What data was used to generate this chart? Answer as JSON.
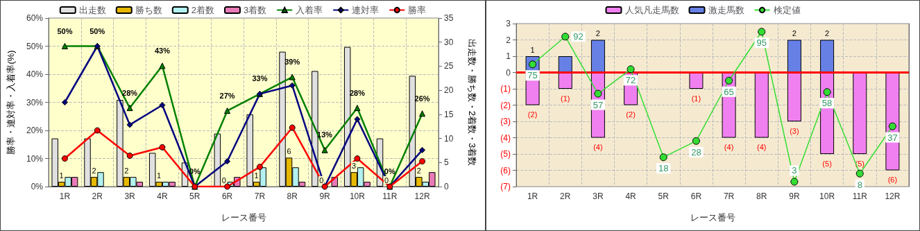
{
  "chart_data": [
    {
      "type": "bar",
      "xlabel": "レース番号",
      "ylabel": "勝率・連対率・入着率(%)",
      "y2label": "出走数・勝ち数・2着数・3着数",
      "categories": [
        "1R",
        "2R",
        "3R",
        "4R",
        "5R",
        "6R",
        "7R",
        "8R",
        "9R",
        "10R",
        "11R",
        "12R"
      ],
      "series": [
        {
          "name": "出走数",
          "axis": "y2",
          "color": "#e0e0e0",
          "values": [
            10,
            10,
            18,
            7,
            5,
            11,
            15,
            28,
            24,
            29,
            10,
            23
          ]
        },
        {
          "name": "勝ち数",
          "axis": "y2",
          "color": "#e6b800",
          "values": [
            1,
            2,
            2,
            1,
            0,
            0,
            1,
            6,
            0,
            3,
            0,
            2
          ],
          "value_labels": [
            "1",
            "2",
            "2",
            "1",
            null,
            "0",
            "1",
            "6",
            "0",
            "3",
            "0",
            "2"
          ]
        },
        {
          "name": "2着数",
          "axis": "y2",
          "color": "#b3f0f0",
          "values": [
            2,
            3,
            2,
            1,
            0,
            1,
            4,
            4,
            0,
            4,
            0,
            1
          ]
        },
        {
          "name": "3着数",
          "axis": "y2",
          "color": "#e87ab8",
          "values": [
            2,
            0,
            1,
            1,
            0,
            2,
            0,
            1,
            2,
            1,
            0,
            3
          ]
        },
        {
          "name": "入着率",
          "type": "line",
          "marker": "triangle",
          "color": "#008000",
          "values": [
            50,
            50,
            28,
            43,
            0,
            27,
            33,
            39,
            13,
            28,
            0,
            26
          ],
          "value_labels": [
            "50%",
            "50%",
            "28%",
            "43%",
            "0%",
            "27%",
            "33%",
            "39%",
            "13%",
            "28%",
            "0%",
            "26%"
          ]
        },
        {
          "name": "連対率",
          "type": "line",
          "marker": "diamond",
          "color": "#000080",
          "values": [
            30,
            50,
            22,
            29,
            0,
            9,
            33,
            36,
            0,
            24,
            0,
            13
          ]
        },
        {
          "name": "勝率",
          "type": "line",
          "marker": "circle",
          "color": "#ff0000",
          "values": [
            10,
            20,
            11,
            14,
            0,
            0,
            7,
            21,
            0,
            10,
            0,
            9
          ]
        }
      ],
      "ylim": [
        0,
        60
      ],
      "yticks": [
        {
          "value": 0,
          "label": "0%"
        },
        {
          "value": 10,
          "label": "10%"
        },
        {
          "value": 20,
          "label": "20%"
        },
        {
          "value": 30,
          "label": "30%"
        },
        {
          "value": 40,
          "label": "40%"
        },
        {
          "value": 50,
          "label": "50%"
        },
        {
          "value": 60,
          "label": "60%"
        }
      ],
      "y2lim": [
        0,
        35
      ],
      "y2ticks": [
        0,
        5,
        10,
        15,
        20,
        25,
        30,
        35
      ],
      "grid": true,
      "legend": "top"
    },
    {
      "type": "bar",
      "xlabel": "レース番号",
      "stacked": true,
      "categories": [
        "1R",
        "2R",
        "3R",
        "4R",
        "5R",
        "6R",
        "7R",
        "8R",
        "9R",
        "10R",
        "11R",
        "12R"
      ],
      "series": [
        {
          "name": "人気凡走馬数",
          "color": "#f080f0",
          "values": [
            -2,
            -1,
            -4,
            -2,
            0,
            -1,
            -4,
            -4,
            -3,
            -5,
            -5,
            -6
          ],
          "value_labels": [
            "(2)",
            "(1)",
            "(4)",
            "(2)",
            null,
            "(1)",
            "(4)",
            "(4)",
            "(3)",
            "(5)",
            "(5)",
            "(6)"
          ]
        },
        {
          "name": "激走馬数",
          "color": "#6680e6",
          "values": [
            1,
            1,
            2,
            0,
            0,
            0,
            0,
            0,
            2,
            2,
            0,
            0
          ],
          "value_labels": [
            "1",
            null,
            "2",
            null,
            null,
            null,
            null,
            null,
            "2",
            "2",
            null,
            null
          ]
        },
        {
          "name": "検定値",
          "type": "line",
          "axis": "y2",
          "marker": "circle",
          "color": "#33dd33",
          "values": [
            75,
            92,
            57,
            72,
            18,
            28,
            65,
            95,
            3,
            58,
            8,
            37
          ],
          "value_labels": [
            "75",
            "92",
            "57",
            "72",
            "18",
            "28",
            "65",
            "95",
            "3",
            "58",
            "8",
            "37"
          ]
        }
      ],
      "ylim": [
        -7,
        3
      ],
      "yticks": [
        {
          "value": -7,
          "label": "(7)"
        },
        {
          "value": -6,
          "label": "(6)"
        },
        {
          "value": -5,
          "label": "(5)"
        },
        {
          "value": -4,
          "label": "(4)"
        },
        {
          "value": -3,
          "label": "(3)"
        },
        {
          "value": -2,
          "label": "(2)"
        },
        {
          "value": -1,
          "label": "(1)"
        },
        0,
        1,
        2,
        3
      ],
      "y2lim": [
        0,
        100
      ],
      "ref_lines": [
        {
          "axis": "y",
          "value": 0,
          "color": "#ff0000"
        }
      ],
      "grid": true,
      "legend": "top"
    }
  ]
}
